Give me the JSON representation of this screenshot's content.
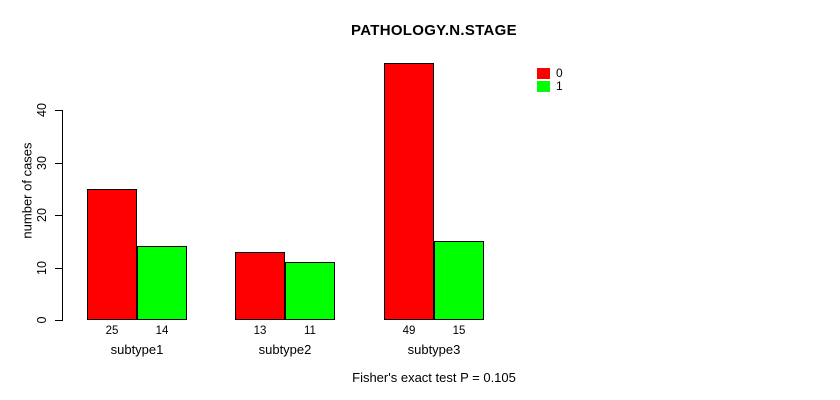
{
  "title": "PATHOLOGY.N.STAGE",
  "ylabel": "number of cases",
  "footer": "Fisher's exact test P = 0.105",
  "legend": {
    "items": [
      {
        "label": "0",
        "color": "#ff0000"
      },
      {
        "label": "1",
        "color": "#00ff00"
      }
    ]
  },
  "chart_data": {
    "type": "bar",
    "title": "PATHOLOGY.N.STAGE",
    "xlabel": "",
    "ylabel": "number of cases",
    "categories": [
      "subtype1",
      "subtype2",
      "subtype3"
    ],
    "series": [
      {
        "name": "0",
        "color": "#ff0000",
        "values": [
          25,
          13,
          49
        ]
      },
      {
        "name": "1",
        "color": "#00ff00",
        "values": [
          14,
          11,
          15
        ]
      }
    ],
    "bar_value_labels": [
      [
        "25",
        "14"
      ],
      [
        "13",
        "11"
      ],
      [
        "49",
        "15"
      ]
    ],
    "yticks": [
      0,
      10,
      20,
      30,
      40
    ],
    "ylim": [
      0,
      49
    ],
    "grid": false,
    "legend_position": "top-right",
    "annotation": "Fisher's exact test P = 0.105"
  }
}
